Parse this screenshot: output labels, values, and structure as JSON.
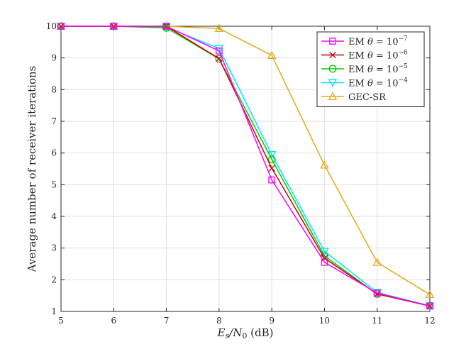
{
  "chart_data": {
    "type": "line",
    "title": "",
    "xlabel_main": "E",
    "xlabel_sub1": "s",
    "xlabel_slash": "/N",
    "xlabel_sub2": "0",
    "xlabel_unit": " (dB)",
    "ylabel": "Average number of receiver iterations",
    "xlim": [
      5,
      12
    ],
    "ylim": [
      1,
      10
    ],
    "xticks": [
      5,
      6,
      7,
      8,
      9,
      10,
      11,
      12
    ],
    "yticks": [
      1,
      2,
      3,
      4,
      5,
      6,
      7,
      8,
      9,
      10
    ],
    "grid": true,
    "legend_position": "top-right",
    "x": [
      5,
      6,
      7,
      8,
      9,
      10,
      11,
      12
    ],
    "series": [
      {
        "name": "EM θ = 10⁻⁷",
        "legend_prefix": "EM ",
        "legend_theta": "θ",
        "legend_eq": " = 10",
        "legend_exp": "−7",
        "marker": "square",
        "color": "#ff00ff",
        "values": [
          10,
          10,
          10,
          9.22,
          5.15,
          2.55,
          1.58,
          1.17
        ]
      },
      {
        "name": "EM θ = 10⁻⁶",
        "legend_prefix": "EM ",
        "legend_theta": "θ",
        "legend_eq": " = 10",
        "legend_exp": "−6",
        "marker": "x",
        "color": "#cc0000",
        "values": [
          10,
          10,
          10,
          8.98,
          5.52,
          2.68,
          1.55,
          1.17
        ]
      },
      {
        "name": "EM θ = 10⁻⁵",
        "legend_prefix": "EM ",
        "legend_theta": "θ",
        "legend_eq": " = 10",
        "legend_exp": "−5",
        "marker": "circle",
        "color": "#00cc00",
        "values": [
          10,
          10,
          9.95,
          8.97,
          5.8,
          2.75,
          1.55,
          1.18
        ]
      },
      {
        "name": "EM θ = 10⁻⁴",
        "legend_prefix": "EM ",
        "legend_theta": "θ",
        "legend_eq": " = 10",
        "legend_exp": "−4",
        "marker": "triangle-down",
        "color": "#00e5ff",
        "values": [
          10,
          10,
          9.97,
          9.3,
          5.95,
          2.9,
          1.6,
          1.18
        ]
      },
      {
        "name": "GEC-SR",
        "legend_prefix": "GEC-SR",
        "legend_theta": "",
        "legend_eq": "",
        "legend_exp": "",
        "marker": "triangle-up",
        "color": "#e6a817",
        "values": [
          10,
          10,
          10,
          9.93,
          9.08,
          5.62,
          2.55,
          1.53
        ]
      }
    ]
  }
}
